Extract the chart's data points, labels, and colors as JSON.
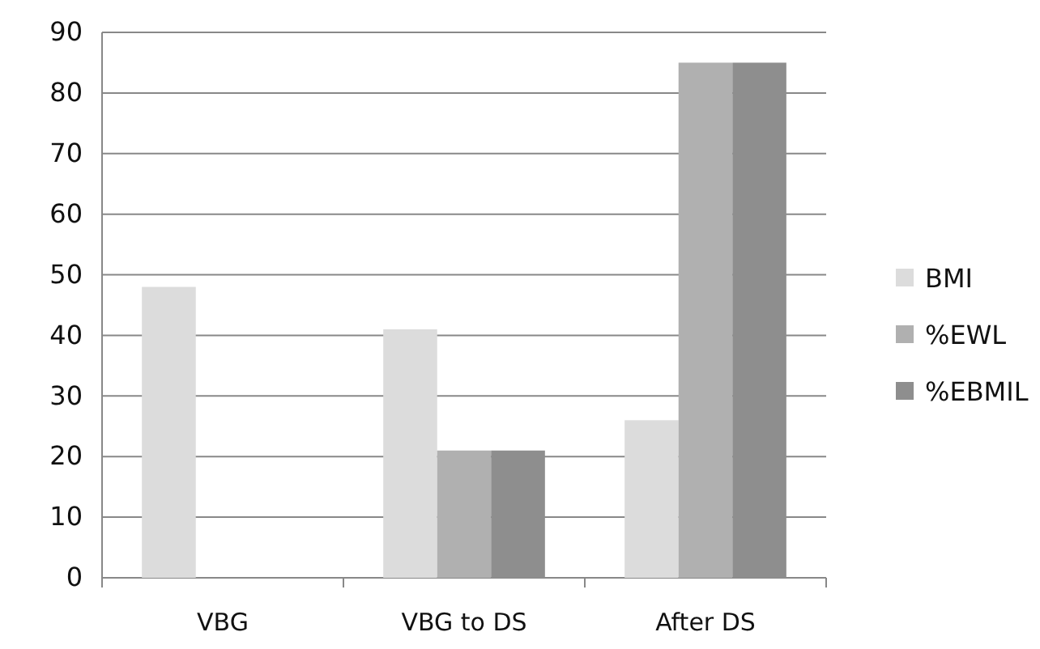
{
  "chart_data": {
    "type": "bar",
    "categories": [
      "VBG",
      "VBG to DS",
      "After DS"
    ],
    "series": [
      {
        "name": "BMI",
        "color": "#dcdcdc",
        "values": [
          48,
          41,
          26
        ]
      },
      {
        "name": "%EWL",
        "color": "#b0b0b0",
        "values": [
          null,
          21,
          85
        ]
      },
      {
        "name": "%EBMIL",
        "color": "#8e8e8e",
        "values": [
          null,
          21,
          85
        ]
      }
    ],
    "ylim": [
      0,
      90
    ],
    "yticks": [
      0,
      10,
      20,
      30,
      40,
      50,
      60,
      70,
      80,
      90
    ],
    "grid": "y",
    "legend": "right"
  }
}
